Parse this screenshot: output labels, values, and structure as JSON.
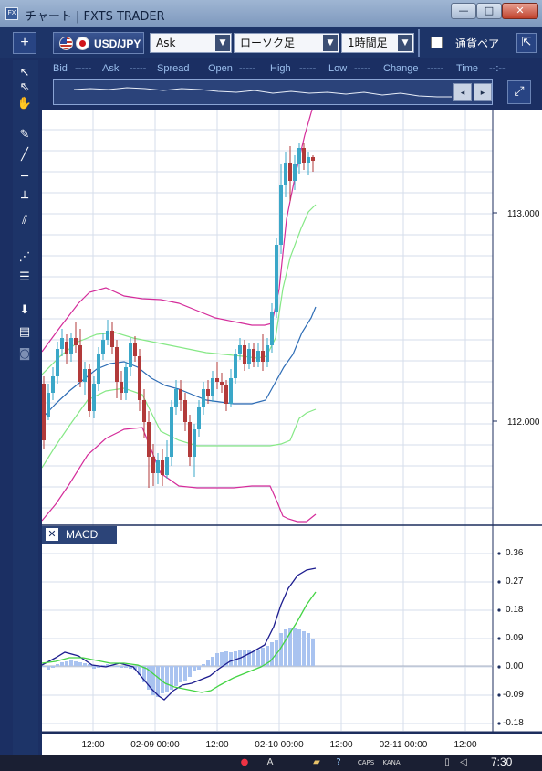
{
  "window": {
    "title": "チャート | FXTS TRADER",
    "app_icon_text": "FX",
    "minimize_glyph": "—",
    "maximize_glyph": "□",
    "close_glyph": "✕"
  },
  "toolbar": {
    "add_glyph": "+",
    "symbol": "USD/JPY",
    "price_type": "Ask",
    "chart_type": "ローソク足",
    "period": "1時間足",
    "pair_compare_label": "通貨ペア",
    "dropdown_arrow": "▼",
    "undock_glyph": "⇱"
  },
  "tools": [
    {
      "name": "pointer-icon",
      "glyph": "↖"
    },
    {
      "name": "crosshair-pointer-icon",
      "glyph": "⇖"
    },
    {
      "name": "hand-icon",
      "glyph": "✋"
    },
    {
      "name": "pencil-icon",
      "glyph": "✎"
    },
    {
      "name": "trendline-icon",
      "glyph": "╱"
    },
    {
      "name": "horizontal-line-icon",
      "glyph": "─"
    },
    {
      "name": "vertical-line-icon",
      "glyph": "┴"
    },
    {
      "name": "channel-icon",
      "glyph": "⫽"
    },
    {
      "name": "fan-icon",
      "glyph": "⋰"
    },
    {
      "name": "fibonacci-icon",
      "glyph": "☰"
    },
    {
      "name": "download-icon",
      "glyph": "⬇"
    },
    {
      "name": "list-icon",
      "glyph": "▤"
    },
    {
      "name": "camera-icon",
      "glyph": "◙"
    }
  ],
  "quote_bar": {
    "bid_label": "Bid",
    "bid_value": "-----",
    "ask_label": "Ask",
    "ask_value": "-----",
    "spread_label": "Spread",
    "open_label": "Open",
    "open_value": "-----",
    "high_label": "High",
    "high_value": "-----",
    "low_label": "Low",
    "low_value": "-----",
    "change_label": "Change",
    "change_value": "-----",
    "time_label": "Time",
    "time_value": "--:--"
  },
  "navigator": {
    "left_glyph": "◂",
    "right_glyph": "▸",
    "autoscroll_glyph": "⤢"
  },
  "price_axis": {
    "labels": [
      "113.000",
      "112.000"
    ]
  },
  "macd": {
    "title": "MACD",
    "close_glyph": "✕",
    "axis_labels": [
      "0.36",
      "0.27",
      "0.18",
      "0.09",
      "0.00",
      "-0.09",
      "-0.18"
    ]
  },
  "time_axis": {
    "labels": [
      "12:00",
      "02-09 00:00",
      "12:00",
      "02-10 00:00",
      "12:00",
      "02-11 00:00",
      "12:00"
    ]
  },
  "colors": {
    "candle_up": "#3aa7c8",
    "candle_down": "#b23a3a",
    "bollinger_outer": "#d42c9a",
    "bollinger_inner": "#86e886",
    "moving_average": "#2d6cb5",
    "macd_line": "#1d1d8f",
    "signal_line": "#44d444",
    "histogram": "#a9c3f0"
  },
  "taskbar": {
    "clock": "7:30",
    "caps": "CAPS",
    "kana": "KANA"
  }
}
